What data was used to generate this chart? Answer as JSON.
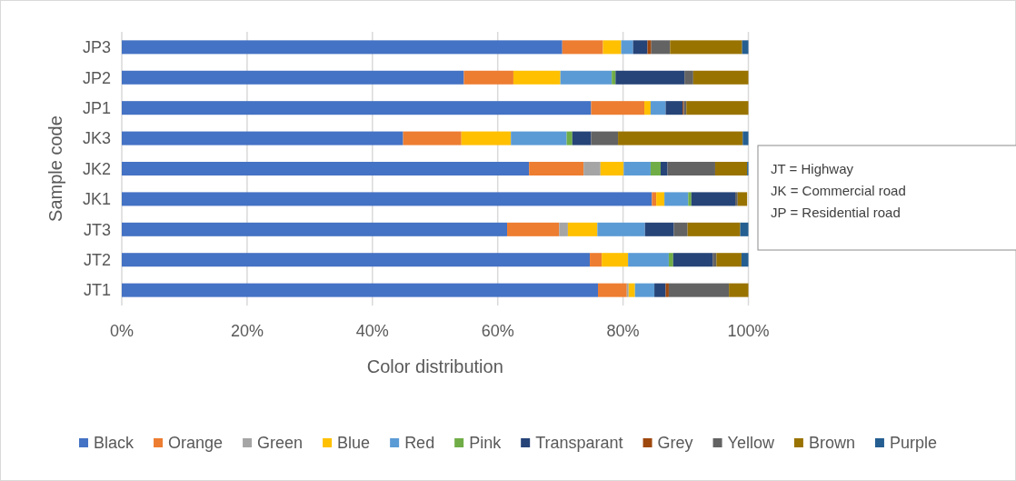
{
  "chart_data": {
    "type": "bar",
    "orientation": "horizontal",
    "stacked": true,
    "xlabel": "Color distribution",
    "ylabel": "Sample code",
    "categories": [
      "JP3",
      "JP2",
      "JP1",
      "JK3",
      "JK2",
      "JK1",
      "JT3",
      "JT2",
      "JT1"
    ],
    "series": [
      {
        "name": "Black",
        "color": "#4472c4",
        "values": [
          70.3,
          54.6,
          74.9,
          44.9,
          65.0,
          84.6,
          61.5,
          74.7,
          76.0
        ]
      },
      {
        "name": "Orange",
        "color": "#ed7d31",
        "values": [
          6.5,
          7.9,
          8.5,
          9.3,
          8.7,
          0.7,
          8.3,
          1.9,
          4.6
        ]
      },
      {
        "name": "Green",
        "color": "#a5a5a5",
        "values": [
          0,
          0,
          0,
          0,
          2.7,
          null,
          1.4,
          0,
          0.3
        ]
      },
      {
        "name": "Blue",
        "color": "#ffc000",
        "values": [
          2.9,
          7.5,
          1.0,
          7.9,
          3.7,
          1.3,
          4.7,
          4.2,
          1.0
        ]
      },
      {
        "name": "Red",
        "color": "#5b9bd5",
        "values": [
          1.9,
          8.2,
          2.4,
          8.9,
          4.3,
          3.8,
          7.6,
          6.5,
          3.1
        ]
      },
      {
        "name": "Pink",
        "color": "#70ad47",
        "values": [
          0,
          0.6,
          0,
          0.9,
          1.6,
          0.5,
          0,
          0.7,
          0
        ]
      },
      {
        "name": "Transparant",
        "color": "#264478",
        "values": [
          2.3,
          11.0,
          2.7,
          3.0,
          1.1,
          7.0,
          4.6,
          6.3,
          1.8
        ]
      },
      {
        "name": "Grey",
        "color": "#9e480e",
        "values": [
          0.6,
          0,
          0.2,
          0,
          0,
          0,
          0,
          0,
          0.5
        ]
      },
      {
        "name": "Yellow",
        "color": "#636363",
        "values": [
          3.0,
          1.4,
          0.4,
          4.3,
          7.6,
          0.4,
          2.2,
          0.6,
          9.6
        ]
      },
      {
        "name": "Brown",
        "color": "#997300",
        "values": [
          11.5,
          8.8,
          9.9,
          19.9,
          5.1,
          1.5,
          8.4,
          4.0,
          3.1
        ]
      },
      {
        "name": "Purple",
        "color": "#255e91",
        "values": [
          1.0,
          0,
          0,
          0.9,
          0.2,
          0,
          1.3,
          1.1,
          0
        ]
      }
    ],
    "xlim": [
      0,
      100
    ],
    "xticks": [
      {
        "value": 0,
        "label": "0%"
      },
      {
        "value": 20,
        "label": "20%"
      },
      {
        "value": 40,
        "label": "40%"
      },
      {
        "value": 60,
        "label": "60%"
      },
      {
        "value": 80,
        "label": "80%"
      },
      {
        "value": 100,
        "label": "100%"
      }
    ],
    "grid": "x",
    "legend": "bottom",
    "annotations": [
      "JT = Highway",
      "JK = Commercial road",
      "JP = Residential road"
    ]
  }
}
